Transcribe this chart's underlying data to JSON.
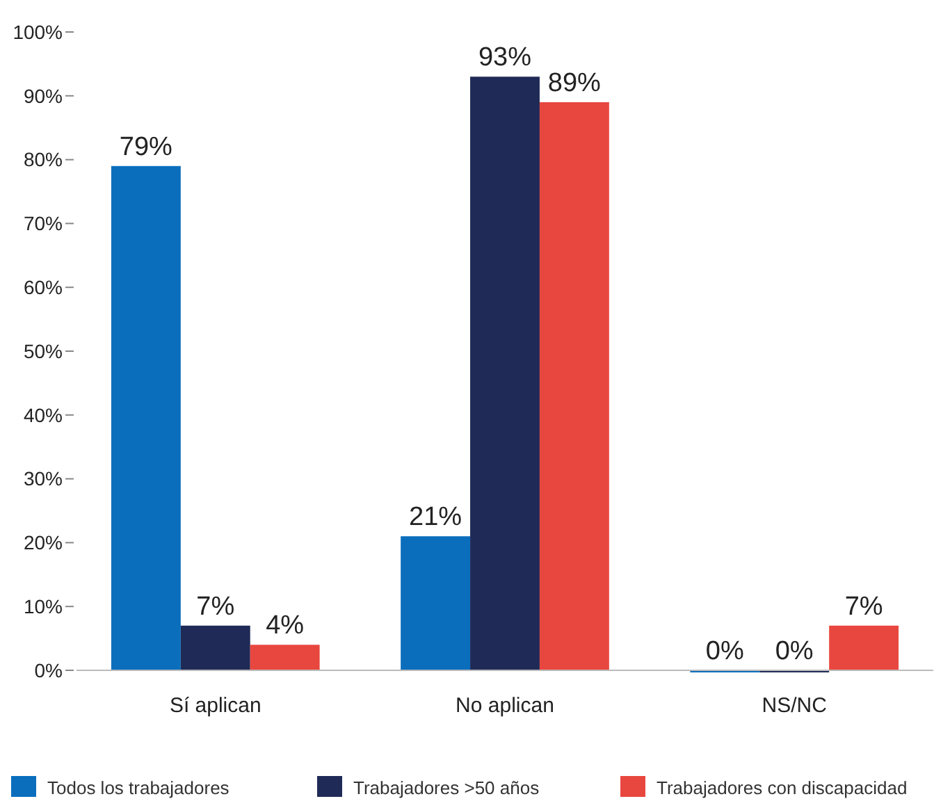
{
  "chart_data": {
    "type": "bar",
    "categories": [
      "Sí aplican",
      "No aplican",
      "NS/NC"
    ],
    "series": [
      {
        "name": "Todos los trabajadores",
        "color": "#0a6ebd",
        "values": [
          79,
          21,
          0
        ],
        "value_labels": [
          "79%",
          "21%",
          "0%"
        ]
      },
      {
        "name": "Trabajadores >50 años",
        "color": "#1f2a56",
        "values": [
          7,
          93,
          0
        ],
        "value_labels": [
          "7%",
          "93%",
          "0%"
        ]
      },
      {
        "name": "Trabajadores con discapacidad",
        "color": "#e8473f",
        "values": [
          4,
          89,
          7
        ],
        "value_labels": [
          "4%",
          "89%",
          "7%"
        ]
      }
    ],
    "ylim": [
      0,
      100
    ],
    "yticks": [
      {
        "value": 0,
        "label": "0%"
      },
      {
        "value": 10,
        "label": "10%"
      },
      {
        "value": 20,
        "label": "20%"
      },
      {
        "value": 30,
        "label": "30%"
      },
      {
        "value": 40,
        "label": "40%"
      },
      {
        "value": 50,
        "label": "50%"
      },
      {
        "value": 60,
        "label": "60%"
      },
      {
        "value": 70,
        "label": "70%"
      },
      {
        "value": 80,
        "label": "80%"
      },
      {
        "value": 90,
        "label": "90%"
      },
      {
        "value": 100,
        "label": "100%"
      }
    ],
    "legend": "bottom"
  }
}
